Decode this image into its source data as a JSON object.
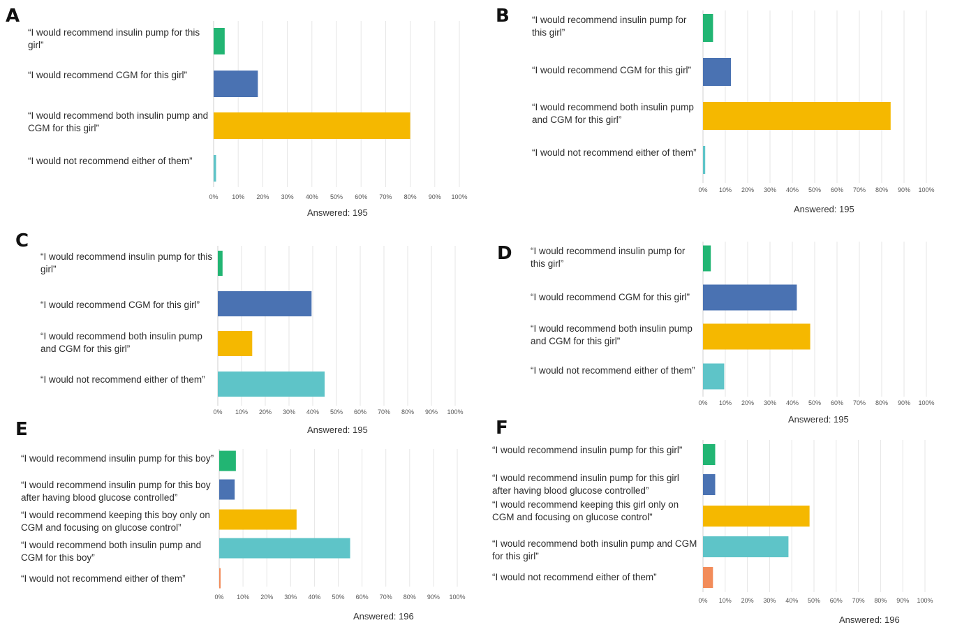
{
  "chart_data": [
    {
      "type": "bar",
      "orientation": "horizontal",
      "panel": "A",
      "categories": [
        "“I would recommend insulin pump for this girl”",
        "“I would recommend CGM for this girl”",
        "“I would recommend both insulin pump and CGM for this girl”",
        "“I would not recommend either of them”"
      ],
      "values": [
        4.5,
        18,
        80,
        1
      ],
      "colors": [
        "#22b573",
        "#4a72b2",
        "#f5b800",
        "#5ec4c8"
      ],
      "ticks": [
        "0%",
        "10%",
        "20%",
        "30%",
        "40%",
        "50%",
        "60%",
        "70%",
        "80%",
        "90%",
        "100%"
      ],
      "xlim": [
        0,
        100
      ],
      "grid": true,
      "answered": "Answered: 195"
    },
    {
      "type": "bar",
      "orientation": "horizontal",
      "panel": "B",
      "categories": [
        "“I would recommend insulin pump for this girl”",
        "“I would recommend CGM for this girl”",
        "“I would recommend both insulin pump and CGM for this girl”",
        "“I would not recommend either of them”"
      ],
      "values": [
        4.5,
        12.5,
        84,
        1
      ],
      "colors": [
        "#22b573",
        "#4a72b2",
        "#f5b800",
        "#5ec4c8"
      ],
      "ticks": [
        "0%",
        "10%",
        "20%",
        "30%",
        "40%",
        "50%",
        "60%",
        "70%",
        "80%",
        "90%",
        "100%"
      ],
      "xlim": [
        0,
        100
      ],
      "grid": true,
      "answered": "Answered: 195"
    },
    {
      "type": "bar",
      "orientation": "horizontal",
      "panel": "C",
      "categories": [
        "“I would recommend insulin pump for this girl”",
        "“I would recommend CGM for this girl”",
        "“I would recommend both insulin pump and CGM for this girl”",
        "“I would not recommend either of them”"
      ],
      "values": [
        2,
        39.5,
        14.5,
        45
      ],
      "colors": [
        "#22b573",
        "#4a72b2",
        "#f5b800",
        "#5ec4c8"
      ],
      "ticks": [
        "0%",
        "10%",
        "20%",
        "30%",
        "40%",
        "50%",
        "60%",
        "70%",
        "80%",
        "90%",
        "100%"
      ],
      "xlim": [
        0,
        100
      ],
      "grid": true,
      "answered": "Answered: 195"
    },
    {
      "type": "bar",
      "orientation": "horizontal",
      "panel": "D",
      "categories": [
        "“I would recommend insulin pump for this girl”",
        "“I would recommend CGM for this girl”",
        "“I would recommend both insulin pump and CGM for this girl”",
        "“I would not recommend either of them”"
      ],
      "values": [
        3.5,
        42,
        48,
        9.5
      ],
      "colors": [
        "#22b573",
        "#4a72b2",
        "#f5b800",
        "#5ec4c8"
      ],
      "ticks": [
        "0%",
        "10%",
        "20%",
        "30%",
        "40%",
        "50%",
        "60%",
        "70%",
        "80%",
        "90%",
        "100%"
      ],
      "xlim": [
        0,
        100
      ],
      "grid": true,
      "answered": "Answered: 195"
    },
    {
      "type": "bar",
      "orientation": "horizontal",
      "panel": "E",
      "categories": [
        "“I would recommend insulin pump for this boy”",
        "“I would recommend insulin pump for this boy after having blood glucose controlled”",
        "“I would recommend keeping this boy only on CGM and focusing on glucose control”",
        "“I would recommend both insulin pump and CGM for this boy”",
        "“I would not recommend either of them”"
      ],
      "values": [
        7,
        6.5,
        32.5,
        55,
        0.5
      ],
      "colors": [
        "#22b573",
        "#4a72b2",
        "#f5b800",
        "#5ec4c8",
        "#f28c5a"
      ],
      "ticks": [
        "0%",
        "10%",
        "20%",
        "30%",
        "40%",
        "50%",
        "60%",
        "70%",
        "80%",
        "90%",
        "100%"
      ],
      "xlim": [
        0,
        100
      ],
      "grid": true,
      "answered": "Answered: 196"
    },
    {
      "type": "bar",
      "orientation": "horizontal",
      "panel": "F",
      "categories": [
        "“I would recommend insulin pump for this girl”",
        "“I would recommend insulin pump for this girl after having blood glucose controlled”",
        "“I would recommend keeping this girl only on CGM and focusing on glucose control”",
        "“I would recommend both insulin pump and CGM for this girl”",
        "“I would not recommend either of them”"
      ],
      "values": [
        5.5,
        5.5,
        48,
        38.5,
        4.5
      ],
      "colors": [
        "#22b573",
        "#4a72b2",
        "#f5b800",
        "#5ec4c8",
        "#f28c5a"
      ],
      "ticks": [
        "0%",
        "10%",
        "20%",
        "30%",
        "40%",
        "50%",
        "60%",
        "70%",
        "80%",
        "90%",
        "100%"
      ],
      "xlim": [
        0,
        100
      ],
      "grid": true,
      "answered": "Answered: 196"
    }
  ],
  "panel_letters": [
    "A",
    "B",
    "C",
    "D",
    "E",
    "F"
  ]
}
